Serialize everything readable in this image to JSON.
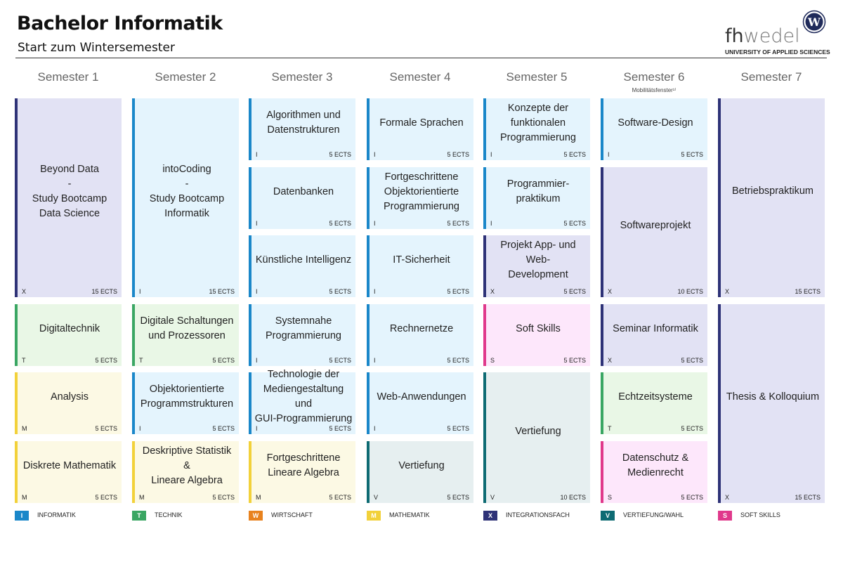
{
  "header": {
    "title": "Bachelor Informatik",
    "subtitle": "Start zum Wintersemester",
    "logo_text_dark": "fh",
    "logo_text_light": "wedel",
    "logo_sub": "UNIVERSITY OF APPLIED SCIENCES",
    "logo_emblem_letter": "W"
  },
  "colors": {
    "I": "#1a87c9",
    "T": "#3aa663",
    "W": "#e8821e",
    "M": "#f2d13a",
    "X": "#2e3277",
    "V": "#0e6b73",
    "S": "#e0398b",
    "fill_I": "#e4f4fd",
    "fill_T": "#e9f7e6",
    "fill_M": "#fcf9e4",
    "fill_X": "#e2e2f4",
    "fill_V": "#e6eff0",
    "fill_S": "#fde7fb"
  },
  "semesters": [
    {
      "label": "Semester 1",
      "note": ""
    },
    {
      "label": "Semester 2",
      "note": ""
    },
    {
      "label": "Semester 3",
      "note": ""
    },
    {
      "label": "Semester 4",
      "note": ""
    },
    {
      "label": "Semester 5",
      "note": ""
    },
    {
      "label": "Semester 6",
      "note": "Mobilitätsfenster¹⁾"
    },
    {
      "label": "Semester 7",
      "note": ""
    }
  ],
  "modules": [
    {
      "sem": 0,
      "slot": 0,
      "span": 3,
      "title": "Beyond Data\n-\nStudy Bootcamp\nData Science",
      "cat": "X",
      "ects": "15 ECTS"
    },
    {
      "sem": 0,
      "slot": 3,
      "span": 1,
      "title": "Digitaltechnik",
      "cat": "T",
      "ects": "5 ECTS"
    },
    {
      "sem": 0,
      "slot": 4,
      "span": 1,
      "title": "Analysis",
      "cat": "M",
      "ects": "5 ECTS"
    },
    {
      "sem": 0,
      "slot": 5,
      "span": 1,
      "title": "Diskrete Mathematik",
      "cat": "M",
      "ects": "5 ECTS"
    },
    {
      "sem": 1,
      "slot": 0,
      "span": 3,
      "title": "intoCoding\n-\nStudy Bootcamp\nInformatik",
      "cat": "I",
      "ects": "15 ECTS"
    },
    {
      "sem": 1,
      "slot": 3,
      "span": 1,
      "title": "Digitale Schaltungen\nund Prozessoren",
      "cat": "T",
      "ects": "5 ECTS"
    },
    {
      "sem": 1,
      "slot": 4,
      "span": 1,
      "title": "Objektorientierte\nProgrammstrukturen",
      "cat": "I",
      "ects": "5 ECTS"
    },
    {
      "sem": 1,
      "slot": 5,
      "span": 1,
      "title": "Deskriptive Statistik &\nLineare Algebra",
      "cat": "M",
      "ects": "5 ECTS"
    },
    {
      "sem": 2,
      "slot": 0,
      "span": 1,
      "title": "Algorithmen und\nDatenstrukturen",
      "cat": "I",
      "ects": "5 ECTS"
    },
    {
      "sem": 2,
      "slot": 1,
      "span": 1,
      "title": "Datenbanken",
      "cat": "I",
      "ects": "5 ECTS"
    },
    {
      "sem": 2,
      "slot": 2,
      "span": 1,
      "title": "Künstliche Intelligenz",
      "cat": "I",
      "ects": "5 ECTS"
    },
    {
      "sem": 2,
      "slot": 3,
      "span": 1,
      "title": "Systemnahe\nProgrammierung",
      "cat": "I",
      "ects": "5 ECTS"
    },
    {
      "sem": 2,
      "slot": 4,
      "span": 1,
      "title": "Technologie der\nMediengestaltung und\nGUI-Programmierung",
      "cat": "I",
      "ects": "5 ECTS"
    },
    {
      "sem": 2,
      "slot": 5,
      "span": 1,
      "title": "Fortgeschrittene\nLineare Algebra",
      "cat": "M",
      "ects": "5 ECTS"
    },
    {
      "sem": 3,
      "slot": 0,
      "span": 1,
      "title": "Formale Sprachen",
      "cat": "I",
      "ects": "5 ECTS"
    },
    {
      "sem": 3,
      "slot": 1,
      "span": 1,
      "title": "Fortgeschrittene\nObjektorientierte\nProgrammierung",
      "cat": "I",
      "ects": "5 ECTS"
    },
    {
      "sem": 3,
      "slot": 2,
      "span": 1,
      "title": "IT-Sicherheit",
      "cat": "I",
      "ects": "5 ECTS"
    },
    {
      "sem": 3,
      "slot": 3,
      "span": 1,
      "title": "Rechnernetze",
      "cat": "I",
      "ects": "5 ECTS"
    },
    {
      "sem": 3,
      "slot": 4,
      "span": 1,
      "title": "Web-Anwendungen",
      "cat": "I",
      "ects": "5 ECTS"
    },
    {
      "sem": 3,
      "slot": 5,
      "span": 1,
      "title": "Vertiefung",
      "cat": "V",
      "ects": "5 ECTS"
    },
    {
      "sem": 4,
      "slot": 0,
      "span": 1,
      "title": "Konzepte der\nfunktionalen\nProgrammierung",
      "cat": "I",
      "ects": "5 ECTS"
    },
    {
      "sem": 4,
      "slot": 1,
      "span": 1,
      "title": "Programmier-\npraktikum",
      "cat": "I",
      "ects": "5 ECTS"
    },
    {
      "sem": 4,
      "slot": 2,
      "span": 1,
      "title": "Projekt App- und Web-\nDevelopment",
      "cat": "X",
      "ects": "5 ECTS"
    },
    {
      "sem": 4,
      "slot": 3,
      "span": 1,
      "title": "Soft Skills",
      "cat": "S",
      "ects": "5 ECTS"
    },
    {
      "sem": 4,
      "slot": 4,
      "span": 2,
      "title": "Vertiefung",
      "cat": "V",
      "ects": "10 ECTS"
    },
    {
      "sem": 5,
      "slot": 0,
      "span": 1,
      "title": "Software-Design",
      "cat": "I",
      "ects": "5 ECTS"
    },
    {
      "sem": 5,
      "slot": 1,
      "span": 2,
      "title": "Softwareprojekt",
      "cat": "X",
      "ects": "10 ECTS"
    },
    {
      "sem": 5,
      "slot": 3,
      "span": 1,
      "title": "Seminar Informatik",
      "cat": "X",
      "ects": "5 ECTS"
    },
    {
      "sem": 5,
      "slot": 4,
      "span": 1,
      "title": "Echtzeitsysteme",
      "cat": "T",
      "ects": "5 ECTS"
    },
    {
      "sem": 5,
      "slot": 5,
      "span": 1,
      "title": "Datenschutz &\nMedienrecht",
      "cat": "S",
      "ects": "5 ECTS"
    },
    {
      "sem": 6,
      "slot": 0,
      "span": 3,
      "title": "Betriebspraktikum",
      "cat": "X",
      "ects": "15 ECTS"
    },
    {
      "sem": 6,
      "slot": 3,
      "span": 3,
      "title": "Thesis & Kolloquium",
      "cat": "X",
      "ects": "15 ECTS"
    }
  ],
  "legend": [
    {
      "code": "I",
      "label": "INFORMATIK"
    },
    {
      "code": "T",
      "label": "TECHNIK"
    },
    {
      "code": "W",
      "label": "WIRTSCHAFT"
    },
    {
      "code": "M",
      "label": "MATHEMATIK"
    },
    {
      "code": "X",
      "label": "INTEGRATIONSFACH"
    },
    {
      "code": "V",
      "label": "VERTIEFUNG/WAHL"
    },
    {
      "code": "S",
      "label": "SOFT SKILLS"
    }
  ]
}
